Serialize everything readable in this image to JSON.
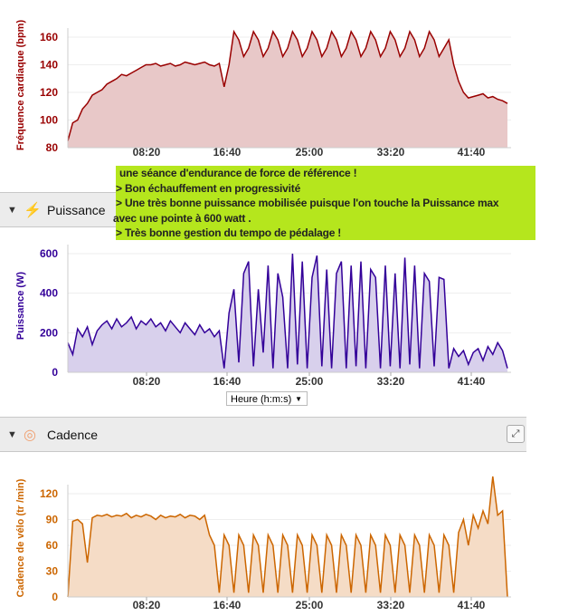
{
  "x_ticks": [
    "08:20",
    "16:40",
    "25:00",
    "33:20",
    "41:40"
  ],
  "charts": [
    {
      "id": "hr",
      "ylabel": "Fréquence cardiaque (bpm)",
      "color": "#990000",
      "fill": "#e8c8c8",
      "yticks": [
        80,
        100,
        120,
        140,
        160
      ],
      "ymin": 80,
      "ymax": 160,
      "type": "area",
      "x_unit": "minutes",
      "x_step": 0.5,
      "values": [
        85,
        98,
        100,
        108,
        112,
        118,
        120,
        122,
        126,
        128,
        130,
        133,
        132,
        134,
        136,
        138,
        140,
        140,
        141,
        139,
        140,
        141,
        139,
        140,
        142,
        141,
        140,
        141,
        142,
        140,
        139,
        141,
        124,
        140,
        164,
        158,
        146,
        152,
        164,
        158,
        146,
        152,
        164,
        158,
        146,
        152,
        164,
        158,
        146,
        152,
        164,
        158,
        146,
        152,
        164,
        158,
        146,
        152,
        164,
        158,
        146,
        152,
        164,
        158,
        146,
        152,
        164,
        158,
        146,
        152,
        164,
        158,
        146,
        152,
        164,
        158,
        146,
        152,
        158,
        140,
        128,
        120,
        116,
        117,
        118,
        119,
        116,
        117,
        115,
        114,
        112
      ]
    },
    {
      "id": "power",
      "ylabel": "Puissance (W)",
      "color": "#330099",
      "fill": "#d8d0ec",
      "yticks": [
        0,
        200,
        400,
        600
      ],
      "ymin": 0,
      "ymax": 600,
      "type": "area",
      "x_unit": "minutes",
      "x_step": 0.5,
      "values": [
        150,
        90,
        220,
        180,
        230,
        140,
        210,
        240,
        260,
        220,
        270,
        230,
        250,
        280,
        220,
        260,
        240,
        270,
        230,
        250,
        210,
        260,
        230,
        200,
        250,
        220,
        190,
        240,
        200,
        220,
        180,
        210,
        20,
        300,
        420,
        50,
        500,
        560,
        30,
        420,
        100,
        540,
        20,
        500,
        380,
        20,
        600,
        40,
        560,
        20,
        480,
        590,
        30,
        520,
        20,
        500,
        560,
        20,
        540,
        30,
        560,
        20,
        520,
        480,
        20,
        540,
        30,
        500,
        20,
        580,
        40,
        540,
        20,
        500,
        460,
        30,
        480,
        470,
        20,
        120,
        80,
        110,
        40,
        100,
        120,
        60,
        130,
        90,
        150,
        110,
        20
      ]
    },
    {
      "id": "cadence",
      "ylabel": "Cadence de vélo (tr /min)",
      "color": "#cc6600",
      "fill": "#f5dcc6",
      "yticks": [
        0,
        30,
        60,
        90,
        120
      ],
      "ymin": 0,
      "ymax": 130,
      "type": "area",
      "x_unit": "minutes",
      "x_step": 0.5,
      "values": [
        0,
        88,
        90,
        85,
        40,
        92,
        95,
        94,
        96,
        93,
        95,
        94,
        97,
        92,
        95,
        93,
        96,
        94,
        90,
        95,
        92,
        94,
        93,
        96,
        92,
        95,
        94,
        90,
        95,
        72,
        60,
        5,
        72,
        60,
        5,
        72,
        60,
        5,
        72,
        60,
        5,
        72,
        60,
        5,
        72,
        60,
        5,
        72,
        60,
        5,
        72,
        60,
        5,
        72,
        60,
        5,
        72,
        60,
        5,
        72,
        60,
        5,
        72,
        60,
        5,
        72,
        60,
        5,
        72,
        60,
        5,
        72,
        60,
        5,
        72,
        60,
        5,
        72,
        60,
        5,
        75,
        90,
        60,
        95,
        80,
        100,
        85,
        140,
        95,
        100,
        0
      ]
    }
  ],
  "panels": {
    "power_title": "Puissance",
    "cadence_title": "Cadence"
  },
  "note": {
    "lines": [
      "  une séance d'endurance de force de référence  !",
      ">  Bon échauffement en progressivité",
      ">  Une très bonne puissance mobilisée puisque l'on touche la Puissance max",
      "avec une pointe à 600 watt .",
      ">  Très bonne gestion du tempo de pédalage !"
    ]
  },
  "x_axis_select": {
    "value": "Heure (h:m:s)"
  }
}
